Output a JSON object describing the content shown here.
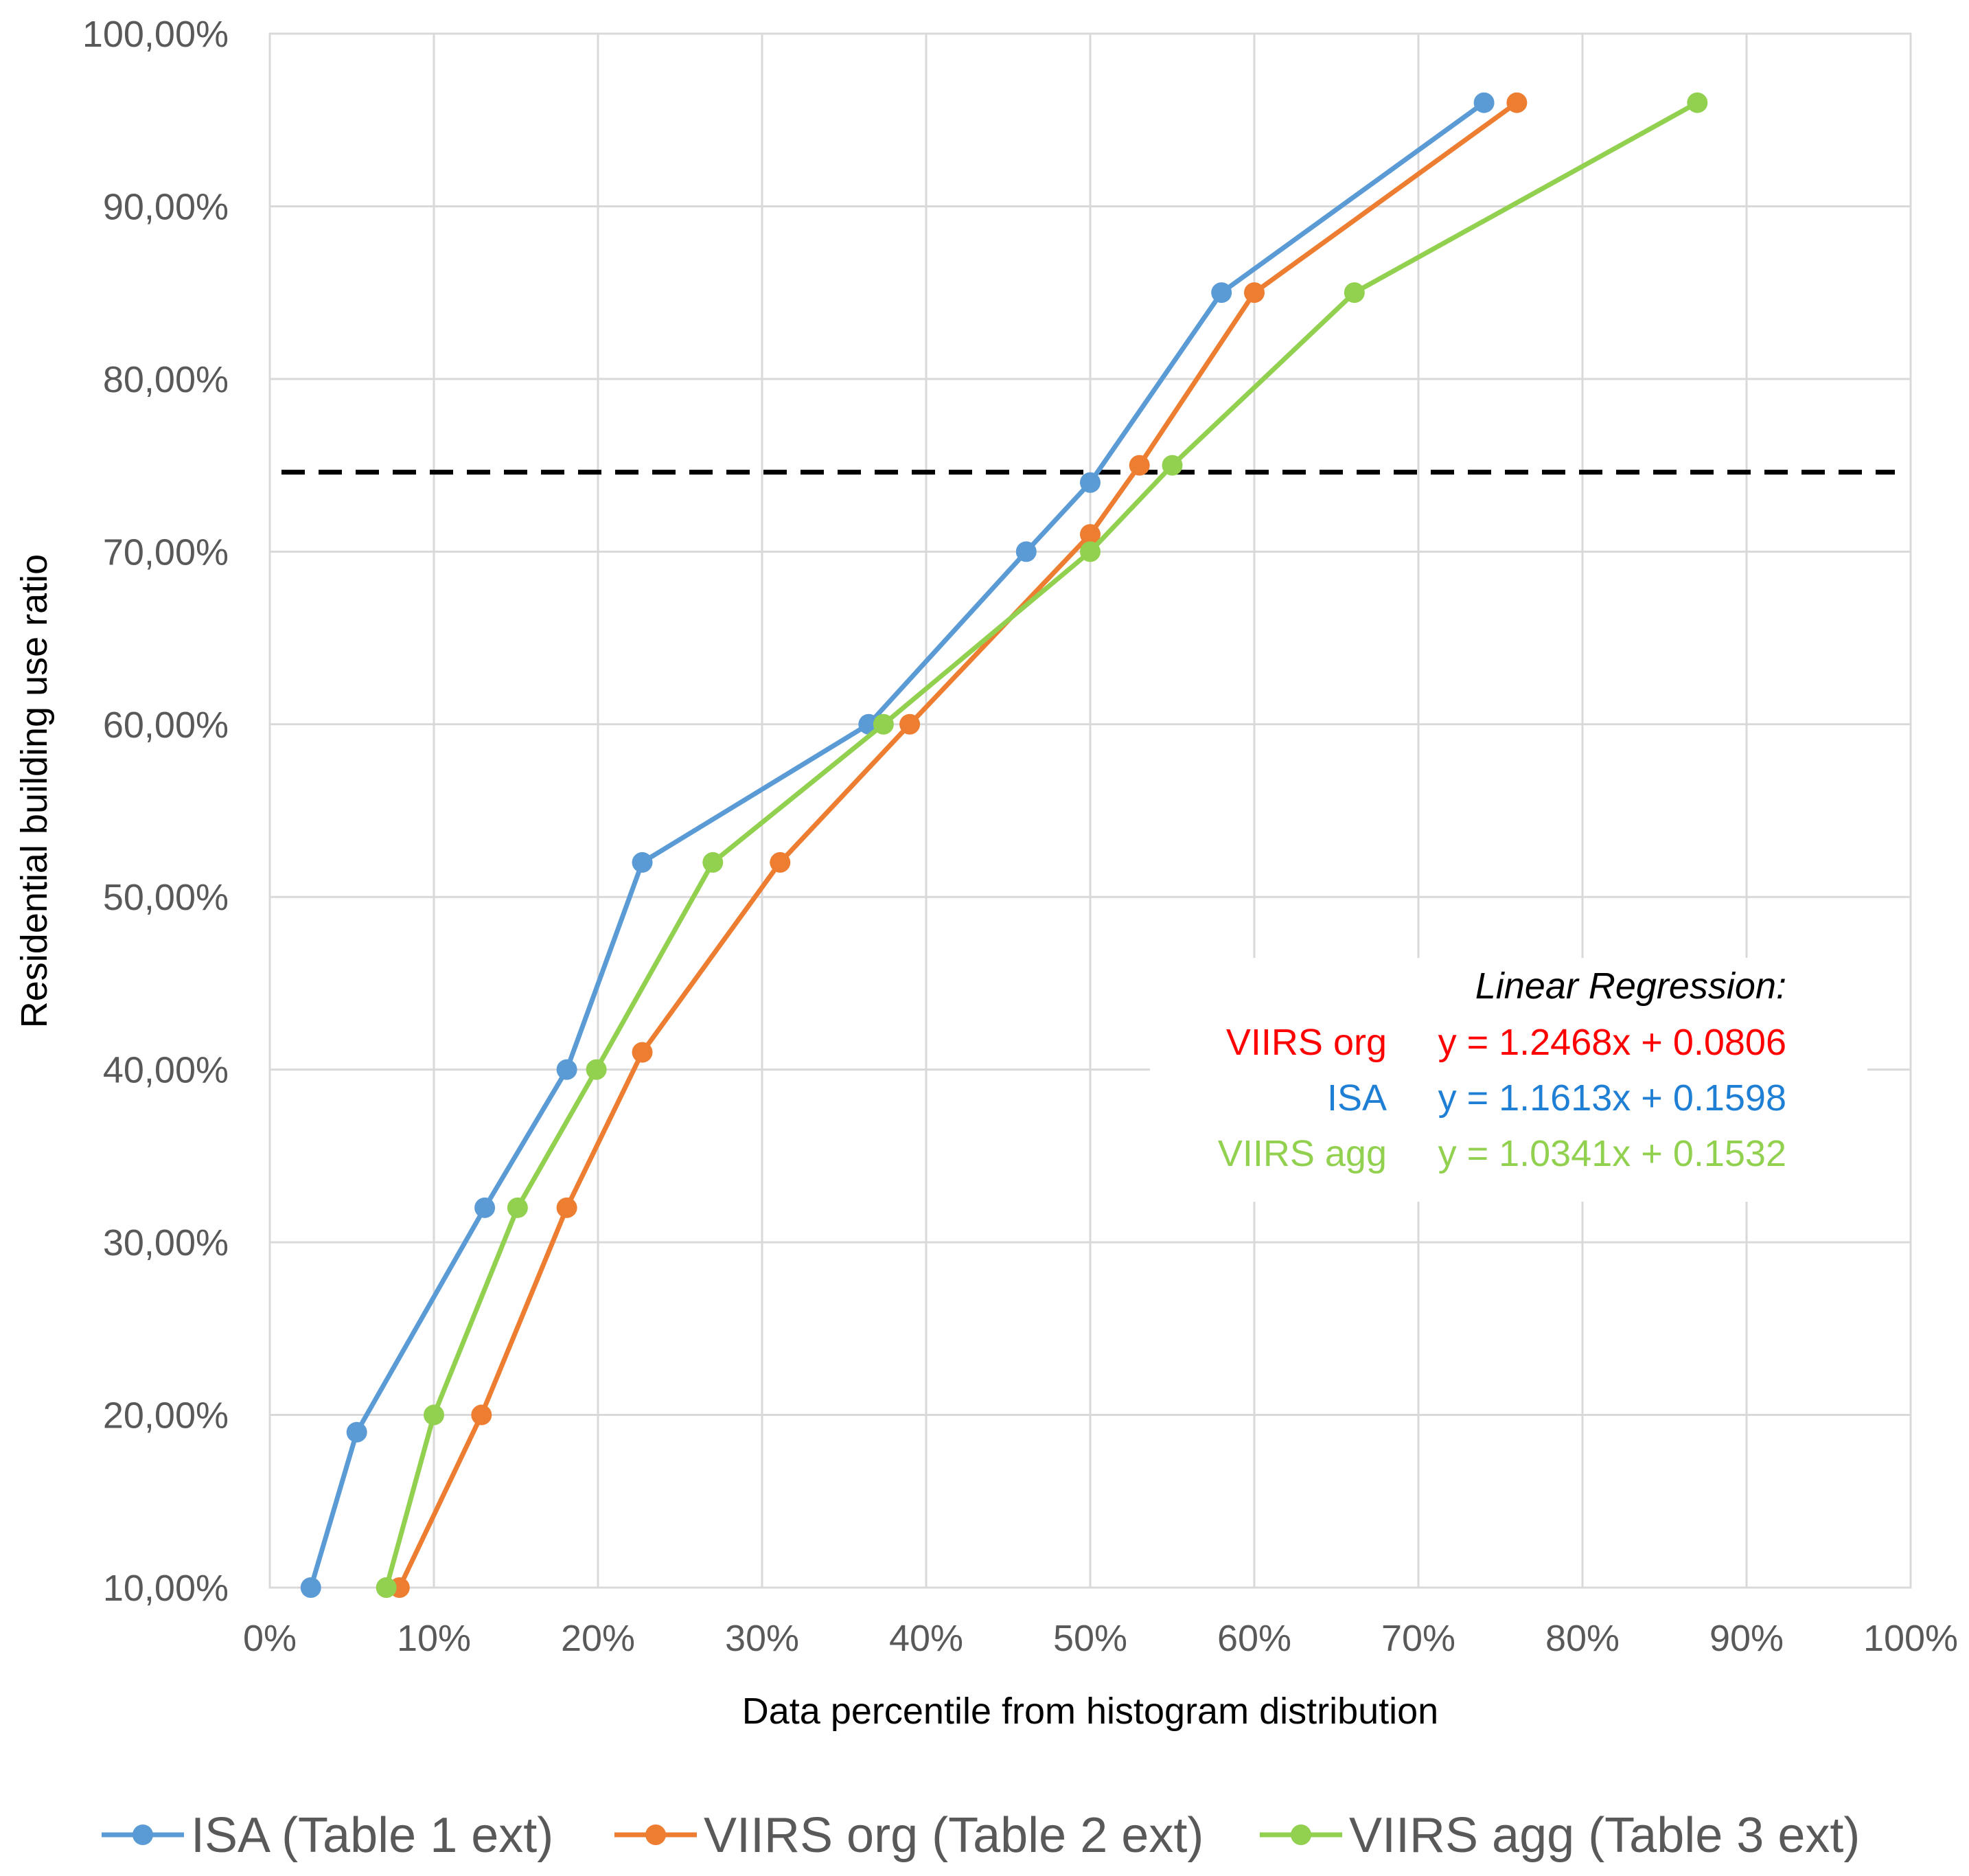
{
  "chart_data": {
    "type": "line",
    "title": "",
    "xlabel": "Data percentile from histogram distribution",
    "ylabel": "Residential building use ratio",
    "xlim": [
      0,
      100
    ],
    "ylim": [
      10,
      100
    ],
    "grid": true,
    "legend_position": "bottom",
    "x_ticks": [
      "0%",
      "10%",
      "20%",
      "30%",
      "40%",
      "50%",
      "60%",
      "70%",
      "80%",
      "90%",
      "100%"
    ],
    "y_ticks": [
      "10,00%",
      "20,00%",
      "30,00%",
      "40,00%",
      "50,00%",
      "60,00%",
      "70,00%",
      "80,00%",
      "90,00%",
      "100,00%"
    ],
    "threshold_y": 74.6,
    "series": [
      {
        "name": "ISA (Table 1 ext)",
        "color": "#5b9bd5",
        "x": [
          2.5,
          5.3,
          13.1,
          18.1,
          22.7,
          36.5,
          46.1,
          50.0,
          58.0,
          74.0
        ],
        "y": [
          10,
          19,
          32,
          40,
          52,
          60,
          70,
          74,
          85,
          96
        ]
      },
      {
        "name": "VIIRS org (Table 2 ext)",
        "color": "#ed7d31",
        "x": [
          7.9,
          12.9,
          18.1,
          22.7,
          31.1,
          39.0,
          50.0,
          53.0,
          60.0,
          76.0
        ],
        "y": [
          10,
          20,
          32,
          41,
          52,
          60,
          71,
          75,
          85,
          96
        ]
      },
      {
        "name": "VIIRS agg (Table 3 ext)",
        "color": "#92d050",
        "x": [
          7.1,
          10.0,
          15.1,
          19.9,
          27.0,
          37.4,
          50.0,
          55.0,
          66.1,
          87.0
        ],
        "y": [
          10,
          20,
          32,
          40,
          52,
          60,
          70,
          75,
          85,
          96
        ]
      }
    ],
    "regression": {
      "heading": "Linear Regression:",
      "rows": [
        {
          "label": "VIIRS org",
          "equation": "y = 1.2468x  + 0.0806",
          "color": "#ff0000"
        },
        {
          "label": "ISA",
          "equation": "y = 1.1613x  + 0.1598",
          "color": "#1f7fd4"
        },
        {
          "label": "VIIRS agg",
          "equation": "y = 1.0341x  + 0.1532",
          "color": "#92d050"
        }
      ]
    }
  }
}
